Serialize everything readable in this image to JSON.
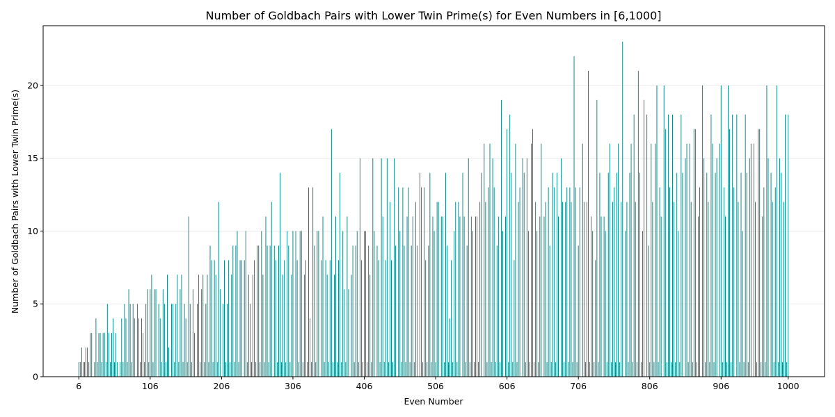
{
  "chart_data": {
    "type": "bar",
    "title": "Number of Goldbach Pairs with Lower Twin Prime(s) for Even Numbers in [6,1000]",
    "xlabel": "Even Number",
    "ylabel": "Number of Goldbach Pairs with Lower Twin Prime(s)",
    "color": "#008080",
    "grid": true,
    "xlim": [
      -44,
      1051
    ],
    "ylim": [
      0,
      24.1
    ],
    "xticks": [
      6,
      106,
      206,
      306,
      406,
      506,
      606,
      706,
      806,
      906,
      1000
    ],
    "yticks": [
      0,
      5,
      10,
      15,
      20
    ],
    "x": [
      6,
      8,
      10,
      12,
      14,
      16,
      18,
      20,
      22,
      24,
      26,
      28,
      30,
      32,
      34,
      36,
      38,
      40,
      42,
      44,
      46,
      48,
      50,
      52,
      54,
      56,
      58,
      60,
      62,
      64,
      66,
      68,
      70,
      72,
      74,
      76,
      78,
      80,
      82,
      84,
      86,
      88,
      90,
      92,
      94,
      96,
      98,
      100,
      102,
      104,
      106,
      108,
      110,
      112,
      114,
      116,
      118,
      120,
      122,
      124,
      126,
      128,
      130,
      132,
      134,
      136,
      138,
      140,
      142,
      144,
      146,
      148,
      150,
      152,
      154,
      156,
      158,
      160,
      162,
      164,
      166,
      168,
      170,
      172,
      174,
      176,
      178,
      180,
      182,
      184,
      186,
      188,
      190,
      192,
      194,
      196,
      198,
      200,
      202,
      204,
      206,
      208,
      210,
      212,
      214,
      216,
      218,
      220,
      222,
      224,
      226,
      228,
      230,
      232,
      234,
      236,
      238,
      240,
      242,
      244,
      246,
      248,
      250,
      252,
      254,
      256,
      258,
      260,
      262,
      264,
      266,
      268,
      270,
      272,
      274,
      276,
      278,
      280,
      282,
      284,
      286,
      288,
      290,
      292,
      294,
      296,
      298,
      300,
      302,
      304,
      306,
      308,
      310,
      312,
      314,
      316,
      318,
      320,
      322,
      324,
      326,
      328,
      330,
      332,
      334,
      336,
      338,
      340,
      342,
      344,
      346,
      348,
      350,
      352,
      354,
      356,
      358,
      360,
      362,
      364,
      366,
      368,
      370,
      372,
      374,
      376,
      378,
      380,
      382,
      384,
      386,
      388,
      390,
      392,
      394,
      396,
      398,
      400,
      402,
      404,
      406,
      408,
      410,
      412,
      414,
      416,
      418,
      420,
      422,
      424,
      426,
      428,
      430,
      432,
      434,
      436,
      438,
      440,
      442,
      444,
      446,
      448,
      450,
      452,
      454,
      456,
      458,
      460,
      462,
      464,
      466,
      468,
      470,
      472,
      474,
      476,
      478,
      480,
      482,
      484,
      486,
      488,
      490,
      492,
      494,
      496,
      498,
      500,
      502,
      504,
      506,
      508,
      510,
      512,
      514,
      516,
      518,
      520,
      522,
      524,
      526,
      528,
      530,
      532,
      534,
      536,
      538,
      540,
      542,
      544,
      546,
      548,
      550,
      552,
      554,
      556,
      558,
      560,
      562,
      564,
      566,
      568,
      570,
      572,
      574,
      576,
      578,
      580,
      582,
      584,
      586,
      588,
      590,
      592,
      594,
      596,
      598,
      600,
      602,
      604,
      606,
      608,
      610,
      612,
      614,
      616,
      618,
      620,
      622,
      624,
      626,
      628,
      630,
      632,
      634,
      636,
      638,
      640,
      642,
      644,
      646,
      648,
      650,
      652,
      654,
      656,
      658,
      660,
      662,
      664,
      666,
      668,
      670,
      672,
      674,
      676,
      678,
      680,
      682,
      684,
      686,
      688,
      690,
      692,
      694,
      696,
      698,
      700,
      702,
      704,
      706,
      708,
      710,
      712,
      714,
      716,
      718,
      720,
      722,
      724,
      726,
      728,
      730,
      732,
      734,
      736,
      738,
      740,
      742,
      744,
      746,
      748,
      750,
      752,
      754,
      756,
      758,
      760,
      762,
      764,
      766,
      768,
      770,
      772,
      774,
      776,
      778,
      780,
      782,
      784,
      786,
      788,
      790,
      792,
      794,
      796,
      798,
      800,
      802,
      804,
      806,
      808,
      810,
      812,
      814,
      816,
      818,
      820,
      822,
      824,
      826,
      828,
      830,
      832,
      834,
      836,
      838,
      840,
      842,
      844,
      846,
      848,
      850,
      852,
      854,
      856,
      858,
      860,
      862,
      864,
      866,
      868,
      870,
      872,
      874,
      876,
      878,
      880,
      882,
      884,
      886,
      888,
      890,
      892,
      894,
      896,
      898,
      900,
      902,
      904,
      906,
      908,
      910,
      912,
      914,
      916,
      918,
      920,
      922,
      924,
      926,
      928,
      930,
      932,
      934,
      936,
      938,
      940,
      942,
      944,
      946,
      948,
      950,
      952,
      954,
      956,
      958,
      960,
      962,
      964,
      966,
      968,
      970,
      972,
      974,
      976,
      978,
      980,
      982,
      984,
      986,
      988,
      990,
      992,
      994,
      996,
      998,
      1000
    ],
    "values": [
      1,
      1,
      2,
      1,
      1,
      2,
      2,
      1,
      3,
      3,
      0,
      1,
      4,
      1,
      3,
      3,
      1,
      3,
      3,
      1,
      5,
      3,
      1,
      3,
      4,
      1,
      3,
      1,
      0,
      1,
      4,
      1,
      5,
      4,
      1,
      6,
      5,
      1,
      5,
      4,
      0,
      5,
      4,
      1,
      4,
      3,
      1,
      5,
      6,
      1,
      6,
      7,
      1,
      6,
      6,
      0,
      5,
      4,
      1,
      6,
      5,
      1,
      7,
      2,
      0,
      5,
      5,
      1,
      5,
      7,
      1,
      6,
      7,
      1,
      5,
      4,
      1,
      11,
      5,
      1,
      6,
      3,
      0,
      5,
      7,
      1,
      6,
      7,
      1,
      5,
      7,
      1,
      9,
      8,
      1,
      8,
      7,
      1,
      12,
      6,
      0,
      5,
      8,
      1,
      5,
      8,
      1,
      7,
      9,
      1,
      9,
      10,
      1,
      8,
      8,
      0,
      8,
      10,
      1,
      7,
      5,
      1,
      7,
      8,
      1,
      9,
      9,
      1,
      10,
      7,
      1,
      11,
      9,
      1,
      9,
      12,
      0,
      9,
      8,
      1,
      9,
      14,
      1,
      7,
      8,
      1,
      10,
      9,
      1,
      7,
      10,
      0,
      10,
      8,
      1,
      10,
      10,
      1,
      7,
      8,
      1,
      13,
      4,
      1,
      13,
      9,
      1,
      10,
      10,
      0,
      8,
      11,
      1,
      8,
      7,
      1,
      8,
      17,
      1,
      7,
      11,
      1,
      8,
      14,
      1,
      10,
      6,
      1,
      11,
      6,
      0,
      7,
      9,
      1,
      9,
      10,
      1,
      15,
      8,
      1,
      10,
      10,
      1,
      9,
      7,
      1,
      15,
      10,
      0,
      9,
      8,
      1,
      15,
      11,
      1,
      8,
      15,
      1,
      12,
      8,
      1,
      15,
      9,
      0,
      13,
      10,
      1,
      13,
      9,
      1,
      11,
      13,
      1,
      9,
      11,
      1,
      12,
      9,
      0,
      14,
      13,
      1,
      13,
      8,
      1,
      9,
      14,
      1,
      11,
      10,
      1,
      12,
      12,
      0,
      11,
      11,
      1,
      14,
      9,
      1,
      4,
      8,
      1,
      10,
      12,
      1,
      12,
      11,
      0,
      14,
      11,
      1,
      9,
      15,
      1,
      11,
      10,
      1,
      11,
      11,
      1,
      12,
      14,
      0,
      16,
      12,
      1,
      13,
      16,
      1,
      15,
      13,
      1,
      9,
      11,
      1,
      19,
      10,
      0,
      11,
      17,
      1,
      18,
      14,
      1,
      8,
      16,
      1,
      12,
      13,
      0,
      15,
      14,
      1,
      15,
      10,
      1,
      16,
      17,
      1,
      12,
      10,
      1,
      11,
      16,
      0,
      11,
      12,
      1,
      13,
      9,
      1,
      14,
      13,
      1,
      14,
      11,
      0,
      15,
      12,
      1,
      12,
      13,
      1,
      13,
      12,
      1,
      22,
      13,
      1,
      9,
      13,
      0,
      16,
      12,
      1,
      12,
      21,
      1,
      11,
      10,
      1,
      8,
      19,
      1,
      14,
      11,
      0,
      11,
      10,
      1,
      14,
      16,
      1,
      12,
      13,
      1,
      14,
      16,
      1,
      12,
      23,
      0,
      10,
      12,
      1,
      14,
      16,
      1,
      18,
      12,
      1,
      21,
      14,
      1,
      10,
      19,
      0,
      18,
      9,
      1,
      16,
      12,
      1,
      16,
      20,
      1,
      13,
      11,
      0,
      20,
      17,
      1,
      18,
      13,
      1,
      18,
      12,
      1,
      14,
      10,
      1,
      18,
      14,
      0,
      15,
      16,
      1,
      16,
      12,
      1,
      17,
      17,
      1,
      11,
      13,
      0,
      20,
      15,
      1,
      14,
      12,
      1,
      18,
      16,
      1,
      14,
      15,
      0,
      16,
      20,
      1,
      13,
      11,
      1,
      20,
      17,
      1,
      18,
      13,
      0,
      18,
      12,
      1,
      14,
      10,
      1,
      18,
      14,
      1,
      15,
      16,
      0,
      16,
      12,
      1,
      17,
      17,
      1,
      11,
      13,
      1,
      20,
      15,
      0,
      14,
      12,
      1,
      13,
      20,
      1,
      15,
      14,
      1,
      12,
      18,
      1,
      18
    ]
  }
}
